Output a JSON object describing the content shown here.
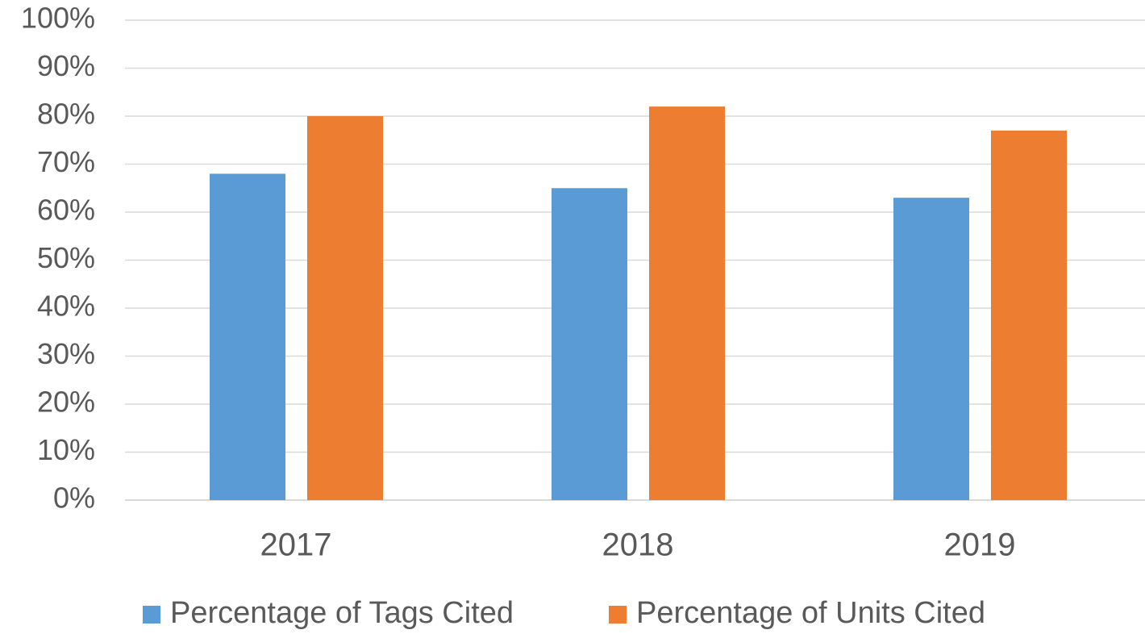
{
  "chart_data": {
    "type": "bar",
    "categories": [
      "2017",
      "2018",
      "2019"
    ],
    "series": [
      {
        "name": "Percentage of Tags Cited",
        "color": "#5b9bd5",
        "values": [
          68,
          65,
          63
        ]
      },
      {
        "name": "Percentage of Units Cited",
        "color": "#ed7d31",
        "values": [
          80,
          82,
          77
        ]
      }
    ],
    "ylim": [
      0,
      100
    ],
    "yticks": [
      {
        "value": 0,
        "label": "0%"
      },
      {
        "value": 10,
        "label": "10%"
      },
      {
        "value": 20,
        "label": "20%"
      },
      {
        "value": 30,
        "label": "30%"
      },
      {
        "value": 40,
        "label": "40%"
      },
      {
        "value": 50,
        "label": "50%"
      },
      {
        "value": 60,
        "label": "60%"
      },
      {
        "value": 70,
        "label": "70%"
      },
      {
        "value": 80,
        "label": "80%"
      },
      {
        "value": 90,
        "label": "90%"
      },
      {
        "value": 100,
        "label": "100%"
      }
    ],
    "grid": true,
    "legend": "bottom"
  }
}
